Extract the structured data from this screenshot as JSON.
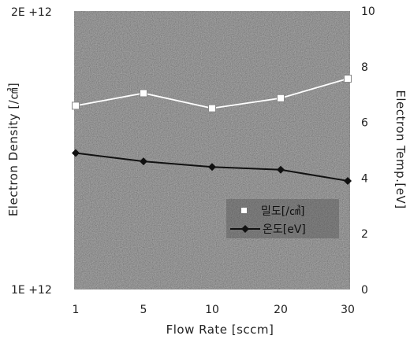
{
  "chart_data": {
    "type": "line",
    "categories": [
      "1",
      "5",
      "10",
      "20",
      "30"
    ],
    "xlabel": "Flow Rate [sccm]",
    "ylabel_left": "Electron Density [/㎤]",
    "ylabel_right": "Electron Temp.[eV]",
    "y_left_ticks": [
      "2E +12",
      "1E +12"
    ],
    "y_left_scale": "log",
    "y_left_range": [
      1000000000000.0,
      2000000000000.0
    ],
    "y_right_ticks": [
      "10",
      "8",
      "6",
      "4",
      "2",
      "0"
    ],
    "y_right_range": [
      0,
      10
    ],
    "legend_position": "right",
    "series": [
      {
        "name": "밀도[/㎤]",
        "axis": "left",
        "marker": "square",
        "line_color": "#ffffff",
        "values": [
          1580000000000.0,
          1630000000000.0,
          1570000000000.0,
          1610000000000.0,
          1690000000000.0
        ]
      },
      {
        "name": "온도[eV]",
        "axis": "right",
        "marker": "diamond",
        "line_color": "#111111",
        "values": [
          4.9,
          4.6,
          4.4,
          4.3,
          3.9
        ]
      }
    ]
  }
}
